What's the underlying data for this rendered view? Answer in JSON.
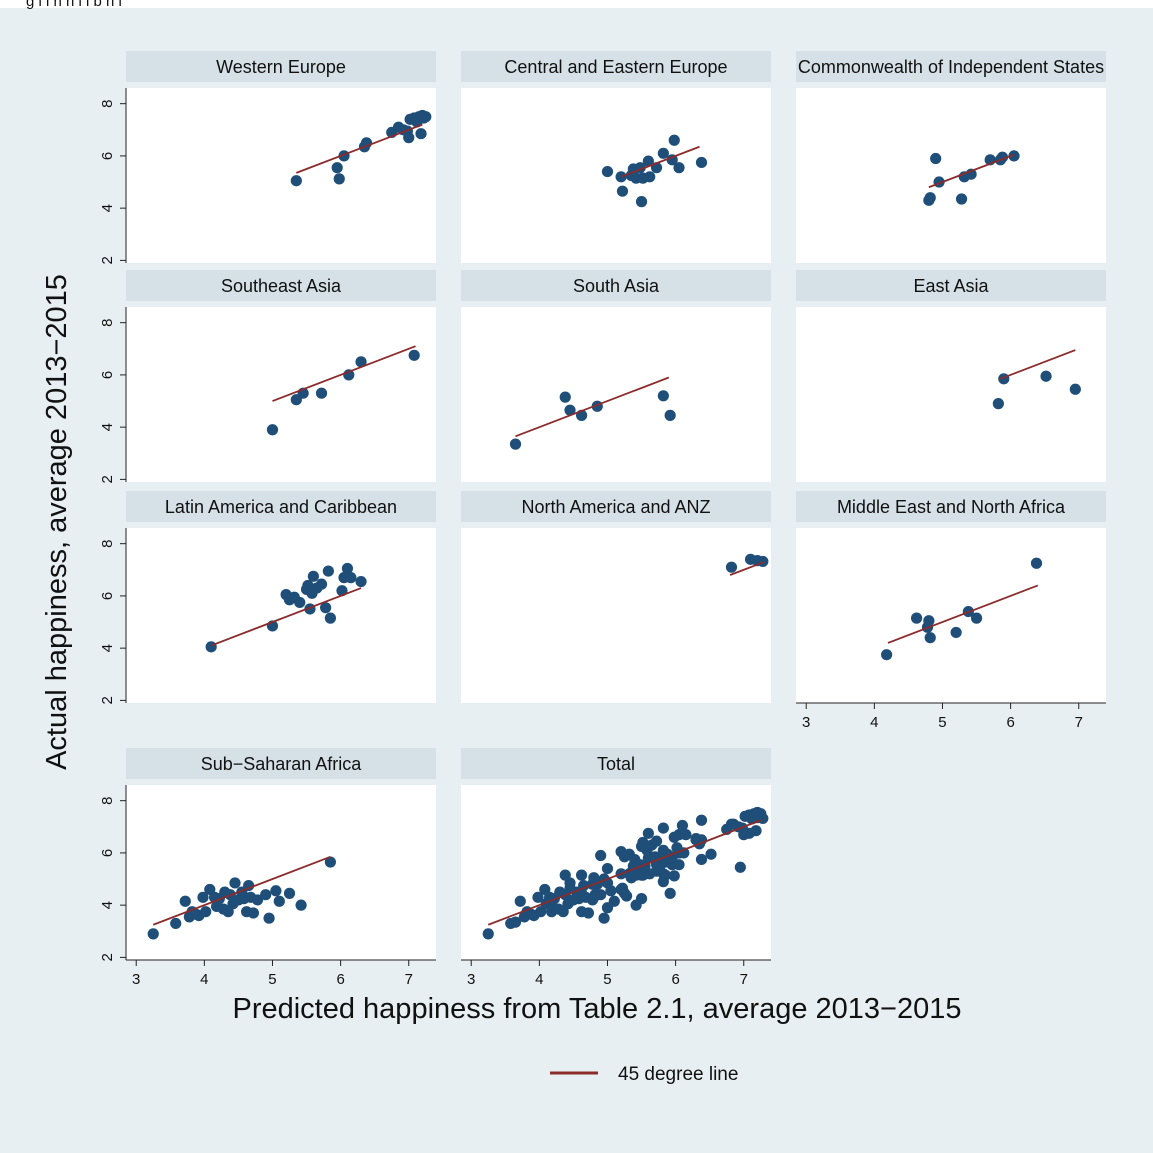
{
  "header_fragment": "g   i                    i h      h    i      i  b     h      i",
  "chart_data": {
    "type": "scatter",
    "xlabel": "Predicted happiness from Table 2.1, average 2013−2015",
    "ylabel": "Actual happiness, average 2013−2015",
    "xlim": [
      2.85,
      7.4
    ],
    "ylim": [
      1.9,
      8.6
    ],
    "xticks": [
      3,
      4,
      5,
      6,
      7
    ],
    "yticks": [
      2,
      4,
      6,
      8
    ],
    "grid": false,
    "legend_position": "bottom-center",
    "legend": [
      {
        "label": "45 degree line",
        "color": "#8b2b2b"
      }
    ],
    "colors": {
      "marker": "#1f4e79",
      "line": "#8b2b2b",
      "outer_bg": "#e8eff2",
      "plot_bg": "#ffffff",
      "strip_bg": "#d5e1e7"
    },
    "panels": [
      {
        "title": "Western Europe",
        "line": [
          5.35,
          7.2
        ],
        "points": [
          [
            5.35,
            5.05
          ],
          [
            5.95,
            5.55
          ],
          [
            5.98,
            5.12
          ],
          [
            6.05,
            6.0
          ],
          [
            6.35,
            6.35
          ],
          [
            6.38,
            6.5
          ],
          [
            6.75,
            6.9
          ],
          [
            6.85,
            7.1
          ],
          [
            6.92,
            7.0
          ],
          [
            6.98,
            6.95
          ],
          [
            7.0,
            6.7
          ],
          [
            7.02,
            7.4
          ],
          [
            7.08,
            7.45
          ],
          [
            7.12,
            7.3
          ],
          [
            7.15,
            7.5
          ],
          [
            7.18,
            6.85
          ],
          [
            7.2,
            7.55
          ],
          [
            7.22,
            7.45
          ],
          [
            7.25,
            7.5
          ]
        ]
      },
      {
        "title": "Central and Eastern Europe",
        "line": [
          5.2,
          6.35
        ],
        "points": [
          [
            5.0,
            5.4
          ],
          [
            5.2,
            5.2
          ],
          [
            5.22,
            4.65
          ],
          [
            5.35,
            5.25
          ],
          [
            5.38,
            5.5
          ],
          [
            5.42,
            5.15
          ],
          [
            5.48,
            5.55
          ],
          [
            5.5,
            4.25
          ],
          [
            5.52,
            5.15
          ],
          [
            5.6,
            5.8
          ],
          [
            5.62,
            5.2
          ],
          [
            5.72,
            5.55
          ],
          [
            5.82,
            6.1
          ],
          [
            5.95,
            5.85
          ],
          [
            5.98,
            6.6
          ],
          [
            6.05,
            5.55
          ],
          [
            6.38,
            5.75
          ]
        ]
      },
      {
        "title": "Commonwealth of Independent States",
        "line": [
          4.8,
          6.05
        ],
        "points": [
          [
            4.8,
            4.3
          ],
          [
            4.82,
            4.4
          ],
          [
            4.9,
            5.9
          ],
          [
            4.95,
            5.0
          ],
          [
            5.28,
            4.35
          ],
          [
            5.32,
            5.2
          ],
          [
            5.42,
            5.3
          ],
          [
            5.7,
            5.85
          ],
          [
            5.85,
            5.85
          ],
          [
            5.88,
            5.95
          ],
          [
            6.05,
            6.0
          ]
        ]
      },
      {
        "title": "Southeast Asia",
        "line": [
          5.0,
          7.1
        ],
        "points": [
          [
            5.0,
            3.9
          ],
          [
            5.35,
            5.05
          ],
          [
            5.45,
            5.3
          ],
          [
            5.72,
            5.3
          ],
          [
            6.12,
            6.0
          ],
          [
            6.3,
            6.5
          ],
          [
            7.08,
            6.75
          ]
        ]
      },
      {
        "title": "South Asia",
        "line": [
          3.65,
          5.9
        ],
        "points": [
          [
            3.65,
            3.35
          ],
          [
            4.38,
            5.15
          ],
          [
            4.45,
            4.65
          ],
          [
            4.62,
            4.45
          ],
          [
            4.85,
            4.8
          ],
          [
            5.82,
            5.2
          ],
          [
            5.92,
            4.45
          ]
        ]
      },
      {
        "title": "East Asia",
        "line": [
          5.85,
          6.95
        ],
        "points": [
          [
            5.82,
            4.9
          ],
          [
            5.9,
            5.85
          ],
          [
            6.52,
            5.95
          ],
          [
            6.95,
            5.45
          ]
        ]
      },
      {
        "title": "Latin America and Caribbean",
        "line": [
          4.1,
          6.3
        ],
        "points": [
          [
            4.1,
            4.05
          ],
          [
            5.0,
            4.85
          ],
          [
            5.2,
            6.05
          ],
          [
            5.25,
            5.85
          ],
          [
            5.32,
            5.95
          ],
          [
            5.4,
            5.75
          ],
          [
            5.5,
            6.25
          ],
          [
            5.52,
            6.4
          ],
          [
            5.55,
            5.5
          ],
          [
            5.58,
            6.1
          ],
          [
            5.6,
            6.75
          ],
          [
            5.65,
            6.3
          ],
          [
            5.72,
            6.45
          ],
          [
            5.78,
            5.55
          ],
          [
            5.82,
            6.95
          ],
          [
            5.85,
            5.15
          ],
          [
            6.02,
            6.2
          ],
          [
            6.05,
            6.7
          ],
          [
            6.1,
            7.05
          ],
          [
            6.15,
            6.7
          ],
          [
            6.3,
            6.55
          ]
        ]
      },
      {
        "title": "North America and ANZ",
        "line": [
          6.8,
          7.3
        ],
        "points": [
          [
            6.82,
            7.1
          ],
          [
            7.1,
            7.4
          ],
          [
            7.2,
            7.35
          ],
          [
            7.28,
            7.32
          ]
        ]
      },
      {
        "title": "Middle East and North Africa",
        "line": [
          4.2,
          6.4
        ],
        "points": [
          [
            4.18,
            3.75
          ],
          [
            4.62,
            5.15
          ],
          [
            4.78,
            4.8
          ],
          [
            4.8,
            5.05
          ],
          [
            4.82,
            4.4
          ],
          [
            5.2,
            4.6
          ],
          [
            5.38,
            5.4
          ],
          [
            5.5,
            5.15
          ],
          [
            6.38,
            7.25
          ]
        ]
      },
      {
        "title": "Sub−Saharan Africa",
        "line": [
          3.25,
          5.85
        ],
        "points": [
          [
            3.25,
            2.9
          ],
          [
            3.58,
            3.3
          ],
          [
            3.72,
            4.15
          ],
          [
            3.78,
            3.55
          ],
          [
            3.82,
            3.75
          ],
          [
            3.88,
            3.65
          ],
          [
            3.92,
            3.6
          ],
          [
            3.98,
            4.3
          ],
          [
            4.02,
            3.75
          ],
          [
            4.08,
            4.6
          ],
          [
            4.15,
            4.3
          ],
          [
            4.18,
            3.95
          ],
          [
            4.22,
            4.25
          ],
          [
            4.28,
            3.85
          ],
          [
            4.3,
            4.5
          ],
          [
            4.35,
            3.75
          ],
          [
            4.38,
            4.4
          ],
          [
            4.42,
            4.05
          ],
          [
            4.45,
            4.85
          ],
          [
            4.5,
            4.2
          ],
          [
            4.55,
            4.5
          ],
          [
            4.58,
            4.25
          ],
          [
            4.62,
            3.75
          ],
          [
            4.65,
            4.75
          ],
          [
            4.68,
            4.3
          ],
          [
            4.72,
            3.7
          ],
          [
            4.78,
            4.2
          ],
          [
            4.9,
            4.4
          ],
          [
            4.95,
            3.5
          ],
          [
            5.05,
            4.55
          ],
          [
            5.1,
            4.15
          ],
          [
            5.25,
            4.45
          ],
          [
            5.42,
            4.0
          ],
          [
            5.85,
            5.65
          ]
        ]
      },
      {
        "title": "Total",
        "line": [
          3.25,
          7.25
        ],
        "aggregate": true,
        "points": []
      }
    ]
  }
}
